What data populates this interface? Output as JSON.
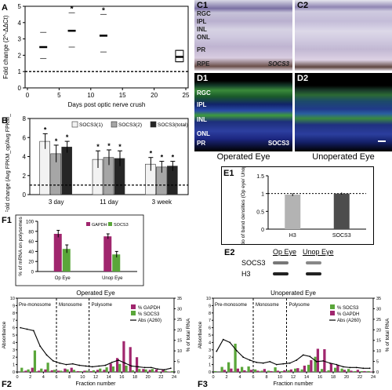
{
  "panels": {
    "A": {
      "label": "A"
    },
    "B": {
      "label": "B"
    },
    "C1": {
      "label": "C1",
      "layers": [
        "RGC",
        "IPL",
        "INL",
        "ONL",
        "PR",
        "RPE"
      ],
      "marker": "SOCS3"
    },
    "C2": {
      "label": "C2"
    },
    "D1": {
      "label": "D1",
      "layers": [
        "RGC",
        "IPL",
        "INL",
        "ONL",
        "PR"
      ],
      "marker": "SOCS3"
    },
    "D2": {
      "label": "D2"
    },
    "E1": {
      "label": "E1"
    },
    "E2": {
      "label": "E2",
      "col1": "Op Eye",
      "col2": "Unop Eye",
      "row1": "SOCS3",
      "row2": "H3"
    },
    "F1": {
      "label": "F1"
    },
    "F2": {
      "label": "F2"
    },
    "F3": {
      "label": "F3"
    }
  },
  "captions": {
    "operated": "Operated Eye",
    "unoperated": "Unoperated Eye"
  },
  "chart_data": [
    {
      "id": "A",
      "type": "scatter",
      "ylabel": "Fold change (2^-ΔΔCt)",
      "xlabel": "Days post optic nerve crush",
      "xlim": [
        0,
        25
      ],
      "ylim": [
        0,
        5
      ],
      "xticks": [
        0,
        5,
        10,
        15,
        20,
        25
      ],
      "yticks": [
        0,
        1,
        2,
        3,
        4,
        5
      ],
      "reference_line": 1,
      "points": [
        {
          "x": 2.5,
          "y": 2.5,
          "low": 1.8,
          "high": 3.4,
          "star": false
        },
        {
          "x": 7,
          "y": 3.5,
          "low": 2.5,
          "high": 4.6,
          "star": true
        },
        {
          "x": 12,
          "y": 3.2,
          "low": 2.2,
          "high": 4.5,
          "star": true
        },
        {
          "x": 24,
          "y": 1.9,
          "low": 1.6,
          "high": 2.3,
          "star": false
        }
      ],
      "star_label": "*"
    },
    {
      "id": "B",
      "type": "bar",
      "ylabel": "Fold change (Avg FPKM_op/Avg FPKM_unop)",
      "categories": [
        "3 day",
        "11 day",
        "3 week"
      ],
      "ylim": [
        0,
        8
      ],
      "yticks": [
        0,
        2,
        4,
        6,
        8
      ],
      "reference_line": 1,
      "series": [
        {
          "name": "SOCS3(1)",
          "color": "#f2f2f2",
          "values": [
            5.6,
            3.7,
            3.2
          ],
          "err": [
            0.8,
            0.9,
            0.7
          ]
        },
        {
          "name": "SOCS3(2)",
          "color": "#a6a6a6",
          "values": [
            4.3,
            3.9,
            2.9
          ],
          "err": [
            0.9,
            0.8,
            0.6
          ]
        },
        {
          "name": "SOCS3(total)",
          "color": "#262626",
          "values": [
            5.0,
            3.8,
            3.0
          ],
          "err": [
            0.6,
            0.8,
            0.5
          ]
        }
      ],
      "star_label": "*"
    },
    {
      "id": "E1",
      "type": "bar",
      "ylabel": "Ratio of band densities (Op eye/ Unop eye)",
      "categories": [
        "H3",
        "SOCS3"
      ],
      "ylim": [
        0,
        1.5
      ],
      "yticks": [
        0,
        0.5,
        1,
        1.5
      ],
      "reference_line": 1,
      "values": [
        0.97,
        1.0
      ],
      "err": [
        0.04,
        0.03
      ],
      "colors": [
        "#b3b3b3",
        "#4d4d4d"
      ]
    },
    {
      "id": "F1",
      "type": "bar",
      "ylabel": "% of mRNA on polysomes",
      "categories": [
        "Op Eye",
        "Unop Eye"
      ],
      "ylim": [
        0,
        100
      ],
      "yticks": [
        0,
        20,
        40,
        60,
        80,
        100
      ],
      "series": [
        {
          "name": "GAPDH",
          "color": "#a0266e",
          "values": [
            75,
            70
          ],
          "err": [
            7,
            5
          ]
        },
        {
          "name": "SOCS3",
          "color": "#5aa63a",
          "values": [
            45,
            34
          ],
          "err": [
            8,
            6
          ]
        }
      ]
    },
    {
      "id": "F2",
      "type": "bar",
      "title": "Operated Eye",
      "xlabel": "Fraction number",
      "ylabel": "Absorbance",
      "y2label": "% of total RNA",
      "xlim": [
        0,
        24
      ],
      "xticks": [
        0,
        2,
        4,
        6,
        8,
        10,
        12,
        14,
        16,
        18,
        20,
        22,
        24
      ],
      "ylim": [
        0,
        10
      ],
      "yticks": [
        0,
        1,
        2,
        3,
        4,
        5,
        6,
        7,
        8,
        9,
        10
      ],
      "y2lim": [
        0,
        35
      ],
      "y2ticks": [
        0,
        5,
        10,
        15,
        20,
        25,
        30,
        35
      ],
      "regions": [
        {
          "label": "Pre-monosome",
          "start": 0,
          "end": 6
        },
        {
          "label": "Monosome",
          "start": 6,
          "end": 11
        },
        {
          "label": "Polysome",
          "start": 11,
          "end": 24
        }
      ],
      "dividers": [
        6,
        11
      ],
      "series": [
        {
          "name": "% GAPDH",
          "color": "#a0266e",
          "values": [
            0,
            0.3,
            1.0,
            0.3,
            0.6,
            0.4,
            0.3,
            0.8,
            1.0,
            0.2,
            0.3,
            0.2,
            0.5,
            0.5,
            2.0,
            3.3,
            7.3,
            5.9,
            3.5,
            0.7,
            0.5,
            0.6,
            0.5,
            0.1
          ]
        },
        {
          "name": "% SOCS3",
          "color": "#5aa63a",
          "values": [
            1.0,
            0.6,
            5.1,
            0.8,
            2.2,
            0.5,
            0.3,
            0.6,
            0.5,
            0.2,
            0.3,
            0.4,
            0.8,
            1.1,
            1.3,
            1.9,
            1.5,
            0.4,
            0.7,
            0.6,
            0.7,
            0.1,
            0.3,
            0.2
          ]
        },
        {
          "name": "Abs (A260)",
          "color": "#000",
          "type": "line",
          "values": [
            6.0,
            5.8,
            5.6,
            3.5,
            2.3,
            1.5,
            1.2,
            1.0,
            1.1,
            0.9,
            0.8,
            0.7,
            0.8,
            0.9,
            1.3,
            1.6,
            1.2,
            0.8,
            0.7,
            0.6,
            0.6,
            0.4,
            0.3,
            0.5
          ]
        }
      ]
    },
    {
      "id": "F3",
      "type": "bar",
      "title": "Unoperated Eye",
      "xlabel": "Fraction number",
      "ylabel": "Absorbance",
      "y2label": "% of total RNA",
      "xlim": [
        0,
        24
      ],
      "xticks": [
        0,
        2,
        4,
        6,
        8,
        10,
        12,
        14,
        16,
        18,
        20,
        22,
        24
      ],
      "ylim": [
        0,
        10
      ],
      "yticks": [
        0,
        1,
        2,
        3,
        4,
        5,
        6,
        7,
        8,
        9,
        10
      ],
      "y2lim": [
        0,
        35
      ],
      "y2ticks": [
        0,
        5,
        10,
        15,
        20,
        25,
        30,
        35
      ],
      "regions": [
        {
          "label": "Pre-monosome",
          "start": 0,
          "end": 6
        },
        {
          "label": "Monosome",
          "start": 6,
          "end": 11
        },
        {
          "label": "Polysome",
          "start": 11,
          "end": 24
        }
      ],
      "dividers": [
        6,
        11
      ],
      "series": [
        {
          "name": "% SOCS3",
          "color": "#5aa63a",
          "values": [
            0.2,
            1.2,
            2.3,
            6.7,
            1.2,
            1.3,
            0.6,
            0.3,
            0.3,
            1.1,
            0.2,
            0.4,
            0.8,
            0.6,
            1.7,
            3.6,
            0.7,
            0.4,
            1.0,
            0.8,
            0.7,
            0.2,
            0.2,
            0.2
          ]
        },
        {
          "name": "% GAPDH",
          "color": "#a0266e",
          "values": [
            0,
            0.5,
            0.8,
            0.8,
            0.4,
            0.5,
            0.3,
            0.7,
            0.2,
            0.3,
            0.4,
            0.6,
            0.9,
            1.5,
            2.8,
            5.5,
            5.4,
            2.0,
            1.6,
            0.5,
            0.3,
            0.5,
            0.2,
            0.1
          ]
        },
        {
          "name": "Abs (A260)",
          "color": "#000",
          "type": "line",
          "values": [
            2.8,
            4.4,
            4.0,
            2.9,
            2.0,
            1.6,
            1.3,
            1.2,
            1.4,
            1.0,
            1.1,
            1.2,
            1.6,
            2.3,
            2.1,
            1.4,
            1.5,
            1.2,
            1.0,
            0.7,
            0.6,
            0.6,
            0.5,
            0.5
          ]
        }
      ]
    }
  ]
}
